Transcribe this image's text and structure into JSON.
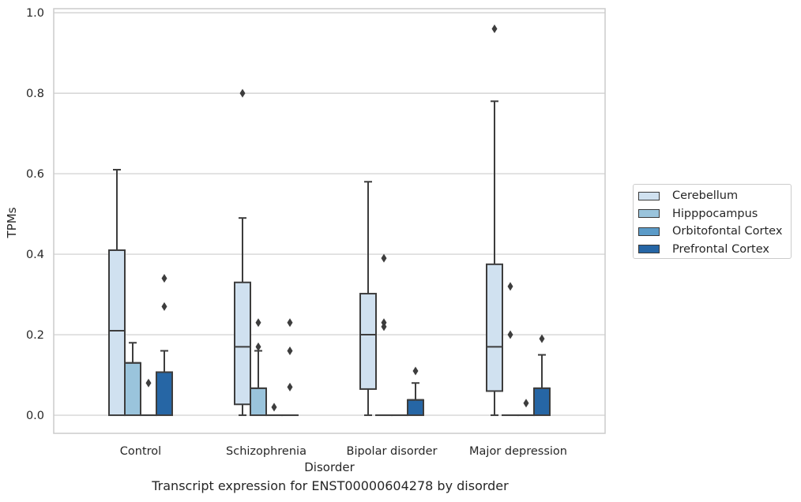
{
  "footer_title": "Transcript expression for ENST00000604278 by disorder",
  "chart_data": {
    "type": "box",
    "title": "",
    "xlabel": "Disorder",
    "ylabel": "TPMs",
    "ylim": [
      -0.045,
      1.01
    ],
    "yticks": [
      "0.0",
      "0.2",
      "0.4",
      "0.6",
      "0.8",
      "1.0"
    ],
    "ytick_values": [
      0,
      0.2,
      0.4,
      0.6,
      0.8,
      1.0
    ],
    "grid": "horizontal",
    "legend_position": "right",
    "categories": [
      "Control",
      "Schizophrenia",
      "Bipolar disorder",
      "Major depression"
    ],
    "series": [
      {
        "name": "Cerebellum",
        "color": "#d0e1f0",
        "boxes": [
          {
            "q1": 0,
            "median": 0.21,
            "q3": 0.41,
            "whislo": 0,
            "whishi": 0.61,
            "fliers": []
          },
          {
            "q1": 0.027,
            "median": 0.17,
            "q3": 0.33,
            "whislo": 0,
            "whishi": 0.49,
            "fliers": [
              0.8
            ]
          },
          {
            "q1": 0.065,
            "median": 0.2,
            "q3": 0.302,
            "whislo": 0,
            "whishi": 0.58,
            "fliers": []
          },
          {
            "q1": 0.06,
            "median": 0.17,
            "q3": 0.375,
            "whislo": 0,
            "whishi": 0.78,
            "fliers": [
              0.96
            ]
          }
        ]
      },
      {
        "name": "Hipppocampus",
        "color": "#9ac4dc",
        "boxes": [
          {
            "q1": 0,
            "median": 0.13,
            "q3": 0.13,
            "whislo": 0,
            "whishi": 0.18,
            "fliers": []
          },
          {
            "q1": 0,
            "median": 0.067,
            "q3": 0.067,
            "whislo": 0,
            "whishi": 0.16,
            "fliers": [
              0.23,
              0.17
            ]
          },
          {
            "q1": 0,
            "median": 0,
            "q3": 0,
            "whislo": 0,
            "whishi": 0,
            "fliers": [
              0.39,
              0.23,
              0.22
            ]
          },
          {
            "q1": 0,
            "median": 0,
            "q3": 0,
            "whislo": 0,
            "whishi": 0,
            "fliers": [
              0.32,
              0.2
            ]
          }
        ]
      },
      {
        "name": "Orbitofontal Cortex",
        "color": "#5b9bc8",
        "boxes": [
          {
            "q1": 0,
            "median": 0,
            "q3": 0,
            "whislo": 0,
            "whishi": 0,
            "fliers": [
              0.08
            ]
          },
          {
            "q1": 0,
            "median": 0,
            "q3": 0,
            "whislo": 0,
            "whishi": 0,
            "fliers": [
              0.02
            ]
          },
          {
            "q1": 0,
            "median": 0,
            "q3": 0,
            "whislo": 0,
            "whishi": 0,
            "fliers": []
          },
          {
            "q1": 0,
            "median": 0,
            "q3": 0,
            "whislo": 0,
            "whishi": 0,
            "fliers": [
              0.03
            ]
          }
        ]
      },
      {
        "name": "Prefrontal Cortex",
        "color": "#2666a5",
        "boxes": [
          {
            "q1": 0,
            "median": 0.107,
            "q3": 0.107,
            "whislo": 0,
            "whishi": 0.16,
            "fliers": [
              0.34,
              0.27
            ]
          },
          {
            "q1": 0,
            "median": 0,
            "q3": 0,
            "whislo": 0,
            "whishi": 0,
            "fliers": [
              0.23,
              0.16,
              0.07
            ]
          },
          {
            "q1": 0,
            "median": 0.038,
            "q3": 0.038,
            "whislo": 0,
            "whishi": 0.08,
            "fliers": [
              0.11
            ]
          },
          {
            "q1": 0,
            "median": 0.067,
            "q3": 0.067,
            "whislo": 0,
            "whishi": 0.15,
            "fliers": [
              0.19
            ]
          }
        ]
      }
    ]
  }
}
